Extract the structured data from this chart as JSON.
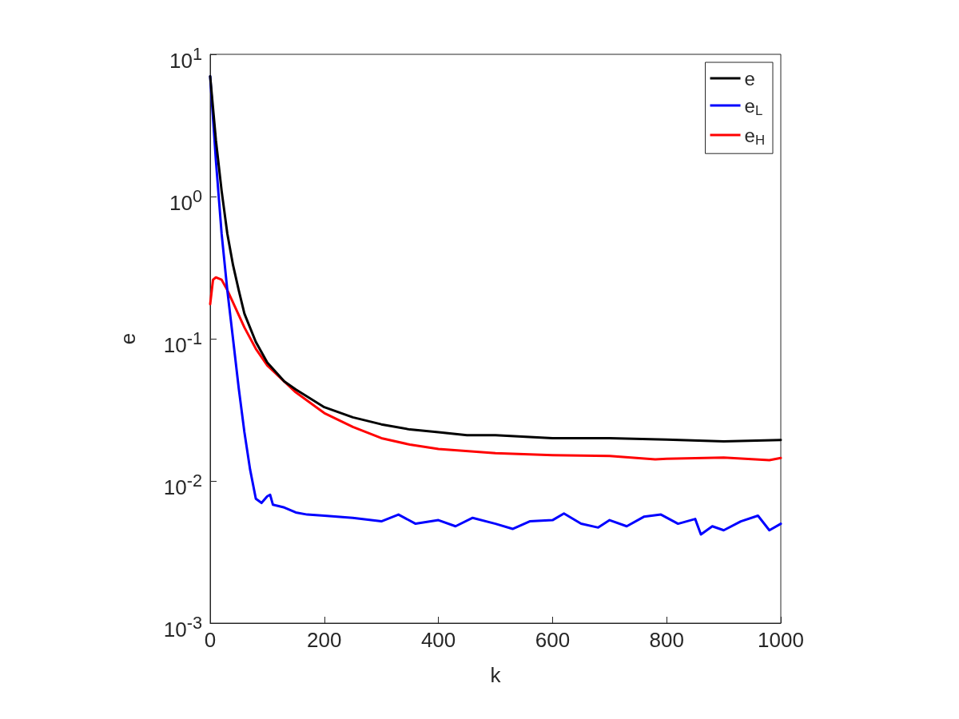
{
  "chart_data": {
    "type": "line",
    "xlabel": "k",
    "ylabel": "e",
    "log": "y",
    "grid": false,
    "legend": "top right",
    "marker": "none",
    "line_style": "solid",
    "xlim": [
      0,
      1000
    ],
    "xticks": [
      0,
      200,
      400,
      600,
      800,
      1000
    ],
    "ylim": [
      0.001,
      10
    ],
    "yticks": [
      {
        "value": 0.001,
        "label": "10$^{-3}$"
      },
      {
        "value": 0.01,
        "label": "10$^{-2}$"
      },
      {
        "value": 0.1,
        "label": "10$^{-1}$"
      },
      {
        "value": 1,
        "label": "10$^{0}$"
      },
      {
        "value": 10,
        "label": "10$^{1}$"
      }
    ],
    "series": [
      {
        "name": "e",
        "color": "#000000",
        "x": [
          0,
          10,
          20,
          30,
          40,
          50,
          60,
          80,
          100,
          130,
          150,
          200,
          250,
          300,
          350,
          400,
          450,
          500,
          600,
          700,
          800,
          900,
          1000
        ],
        "values": [
          7,
          2.5,
          1.1,
          0.55,
          0.33,
          0.22,
          0.15,
          0.095,
          0.068,
          0.05,
          0.044,
          0.033,
          0.028,
          0.025,
          0.023,
          0.022,
          0.021,
          0.021,
          0.02,
          0.02,
          0.0195,
          0.019,
          0.0194
        ]
      },
      {
        "name": "e$_{L}$",
        "color": "#0000ff",
        "x": [
          0,
          10,
          20,
          30,
          40,
          50,
          60,
          70,
          80,
          90,
          100,
          105,
          110,
          130,
          150,
          170,
          200,
          250,
          300,
          330,
          360,
          400,
          430,
          460,
          500,
          530,
          560,
          600,
          620,
          650,
          680,
          700,
          730,
          760,
          790,
          820,
          850,
          860,
          880,
          900,
          930,
          960,
          980,
          1000
        ],
        "values": [
          7,
          1.8,
          0.55,
          0.22,
          0.1,
          0.045,
          0.022,
          0.012,
          0.0075,
          0.007,
          0.0078,
          0.008,
          0.0068,
          0.0065,
          0.006,
          0.0058,
          0.0057,
          0.0055,
          0.0052,
          0.0058,
          0.005,
          0.0053,
          0.0048,
          0.0055,
          0.005,
          0.0046,
          0.0052,
          0.0053,
          0.0059,
          0.005,
          0.0047,
          0.0053,
          0.0048,
          0.0056,
          0.0058,
          0.005,
          0.0054,
          0.0042,
          0.0048,
          0.0045,
          0.0052,
          0.0057,
          0.0045,
          0.005
        ]
      },
      {
        "name": "e$_{H}$",
        "color": "#ff0000",
        "x": [
          0,
          5,
          10,
          20,
          30,
          40,
          60,
          80,
          100,
          150,
          200,
          250,
          300,
          350,
          400,
          500,
          600,
          700,
          780,
          800,
          900,
          980,
          1000
        ],
        "values": [
          0.175,
          0.26,
          0.27,
          0.26,
          0.22,
          0.18,
          0.12,
          0.085,
          0.065,
          0.042,
          0.03,
          0.024,
          0.02,
          0.018,
          0.0168,
          0.0157,
          0.0152,
          0.015,
          0.0142,
          0.0143,
          0.0146,
          0.014,
          0.0145
        ]
      }
    ]
  }
}
